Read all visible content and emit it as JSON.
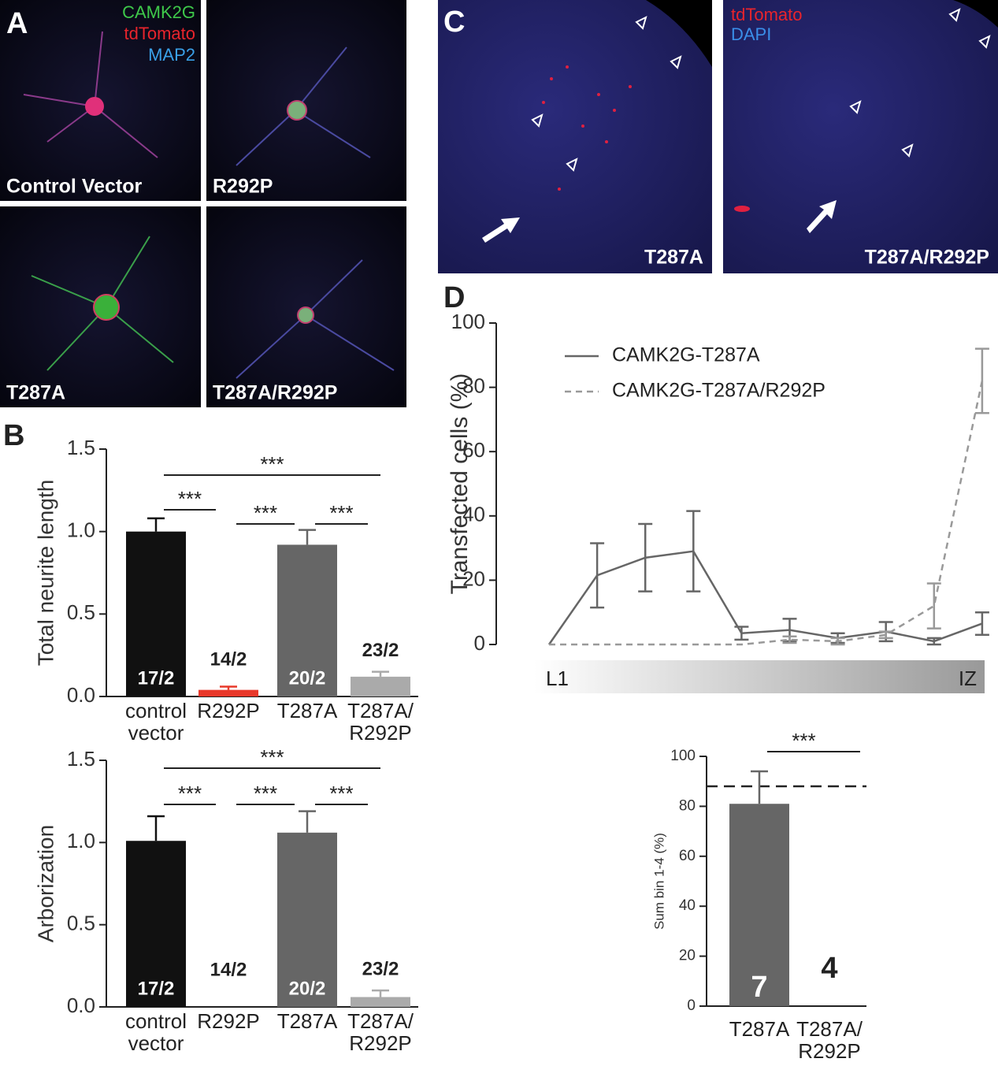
{
  "panels": {
    "A": {
      "letter": "A",
      "legend": [
        {
          "text": "CAMK2G",
          "color": "#3ec84a"
        },
        {
          "text": "tdTomato",
          "color": "#e8242c"
        },
        {
          "text": "MAP2",
          "color": "#3aa0e8"
        }
      ],
      "tiles": [
        "Control Vector",
        "R292P",
        "T287A",
        "T287A/R292P"
      ]
    },
    "B": {
      "letter": "B"
    },
    "C": {
      "letter": "C",
      "legend": [
        {
          "text": "tdTomato",
          "color": "#e8242c"
        },
        {
          "text": "DAPI",
          "color": "#3a8ee8"
        }
      ],
      "tiles": [
        "T287A",
        "T287A/R292P"
      ]
    },
    "D": {
      "letter": "D"
    }
  },
  "chart_data": [
    {
      "type": "bar",
      "y_label": "Total neurite length",
      "categories": [
        "control\nvector",
        "R292P",
        "T287A",
        "T287A/\nR292P"
      ],
      "values": [
        1.0,
        0.04,
        0.92,
        0.12
      ],
      "errors": [
        0.08,
        0.02,
        0.09,
        0.03
      ],
      "colors": [
        "#111111",
        "#e8382a",
        "#666666",
        "#aaaaaa"
      ],
      "n_labels": [
        "17/2",
        "14/2",
        "20/2",
        "23/2"
      ],
      "ylim": [
        0,
        1.5
      ],
      "yticks": [
        {
          "value": 0,
          "label": "0.0"
        },
        0.5,
        {
          "value": 1,
          "label": "1.0"
        },
        1.5
      ],
      "significance": [
        {
          "label": "***",
          "between": [
            "control\nvector",
            "T287A/\nR292P"
          ]
        },
        {
          "label": "***",
          "between": [
            "control\nvector",
            "R292P"
          ]
        },
        {
          "label": "***",
          "between": [
            "R292P",
            "T287A"
          ]
        },
        {
          "label": "***",
          "between": [
            "T287A",
            "T287A/\nR292P"
          ]
        }
      ]
    },
    {
      "type": "bar",
      "y_label": "Arborization",
      "categories": [
        "control\nvector",
        "R292P",
        "T287A",
        "T287A/\nR292P"
      ],
      "values": [
        1.01,
        0,
        1.06,
        0.06
      ],
      "errors": [
        0.15,
        null,
        0.13,
        0.04
      ],
      "colors": [
        "#111111",
        "#e8382a",
        "#666666",
        "#aaaaaa"
      ],
      "n_labels": [
        "17/2",
        "14/2",
        "20/2",
        "23/2"
      ],
      "ylim": [
        0,
        1.5
      ],
      "yticks": [
        {
          "value": 0,
          "label": "0.0"
        },
        0.5,
        {
          "value": 1,
          "label": "1.0"
        },
        1.5
      ],
      "significance": [
        {
          "label": "***",
          "between": [
            "control\nvector",
            "T287A/\nR292P"
          ]
        },
        {
          "label": "***",
          "between": [
            "control\nvector",
            "R292P"
          ]
        },
        {
          "label": "***",
          "between": [
            "R292P",
            "T287A"
          ]
        },
        {
          "label": "***",
          "between": [
            "T287A",
            "T287A/\nR292P"
          ]
        }
      ]
    },
    {
      "type": "line",
      "y_label": "Transfected cells (%)",
      "categories": [
        null,
        null,
        null,
        null,
        null,
        null,
        null,
        null,
        null,
        null
      ],
      "x_axis_labels": [
        "L1",
        "IZ"
      ],
      "series": [
        {
          "name": "CAMK2G-T287A",
          "color": "#666666",
          "dashed": false,
          "values": [
            0,
            21.5,
            27,
            29,
            3.5,
            4.5,
            2,
            4,
            1,
            6.5
          ],
          "errors": [
            null,
            10,
            10.5,
            12.5,
            2,
            3.5,
            1.5,
            3,
            1,
            3.5
          ]
        },
        {
          "name": "CAMK2G-T287A/R292P",
          "color": "#999999",
          "dashed": true,
          "values": [
            0,
            0,
            0,
            0,
            0,
            1.5,
            1,
            3,
            12,
            82
          ],
          "errors": [
            null,
            null,
            null,
            null,
            null,
            1,
            1,
            1,
            7,
            10
          ]
        }
      ],
      "ylim": [
        0,
        100
      ],
      "yticks": [
        0,
        20,
        40,
        60,
        80,
        100
      ]
    },
    {
      "type": "bar",
      "y_label": "Sum bin 1-4 (%)",
      "categories": [
        "T287A",
        "T287A/\nR292P"
      ],
      "values": [
        81,
        0
      ],
      "errors": [
        13,
        null
      ],
      "colors": [
        "#666666",
        "#666666"
      ],
      "n_labels": [
        "7",
        "4"
      ],
      "reference_line": 88,
      "ylim": [
        0,
        100
      ],
      "yticks": [
        0,
        20,
        40,
        60,
        80,
        100
      ],
      "significance": [
        {
          "label": "***",
          "between": [
            "T287A",
            "T287A/\nR292P"
          ]
        }
      ]
    }
  ]
}
